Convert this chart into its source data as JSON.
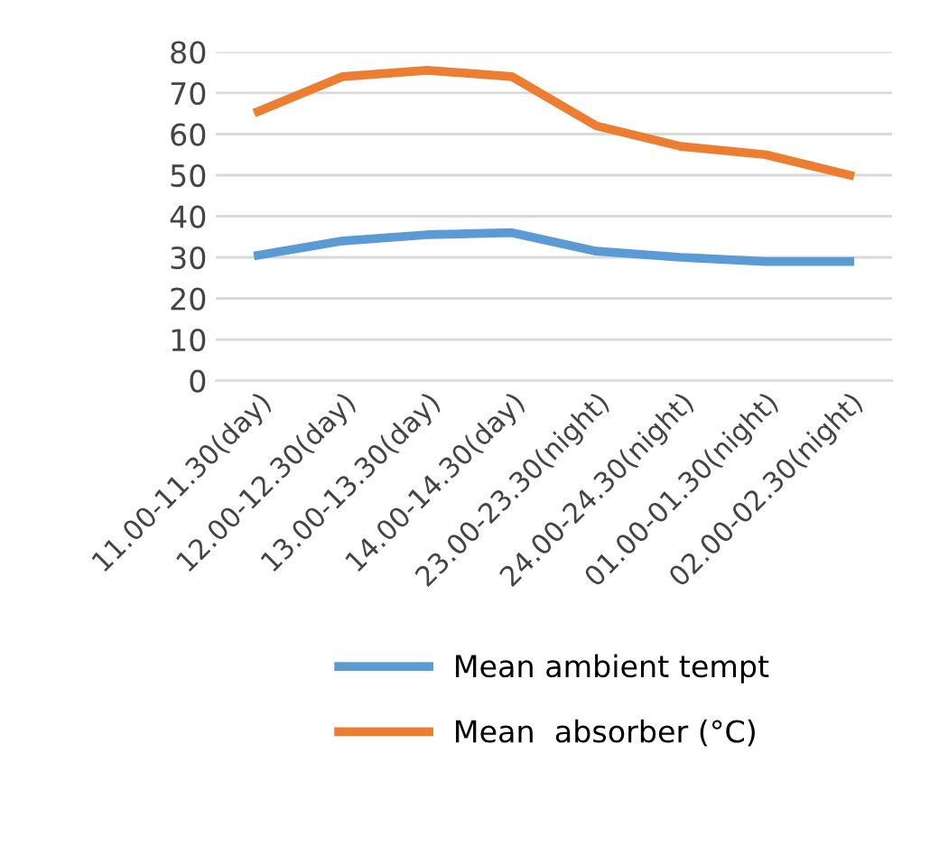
{
  "chart_data": {
    "type": "line",
    "categories": [
      "11.00-11.30(day)",
      "12.00-12.30(day)",
      "13.00-13.30(day)",
      "14.00-14.30(day)",
      "23.00-23.30(night)",
      "24.00-24.30(night)",
      "01.00-01.30(night)",
      "02.00-02.30(night)"
    ],
    "series": [
      {
        "name": "Mean ambient tempt",
        "color": "#5b9bd5",
        "values": [
          30.5,
          34,
          35.5,
          36,
          31.5,
          30,
          29,
          29
        ]
      },
      {
        "name": "Mean  absorber (°C)",
        "color": "#ed7d31",
        "values": [
          65.5,
          74,
          75.5,
          74,
          62,
          57,
          55,
          50
        ]
      }
    ],
    "ylim": [
      0,
      80
    ],
    "yticks": [
      0,
      10,
      20,
      30,
      40,
      50,
      60,
      70,
      80
    ],
    "grid": "y",
    "legend": "bottom",
    "marker": "none",
    "line_style": "solid"
  }
}
